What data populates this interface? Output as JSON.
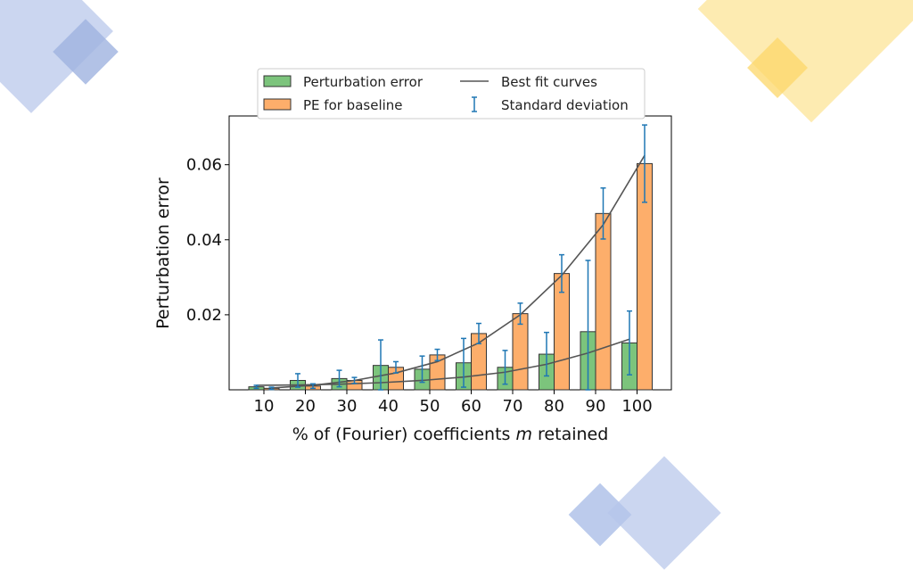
{
  "colors": {
    "green_bar": "#7cc47c",
    "orange_bar": "#fdae6b",
    "bar_edge": "#333333",
    "error_bar": "#1f77b4",
    "fit_curve": "#555555",
    "deco_blue": "#c5d2ee",
    "deco_blue_dark": "#9fb3e0",
    "deco_yellow": "#fde9a8",
    "deco_yellow_dark": "#fcd76a"
  },
  "chart_data": {
    "type": "bar",
    "categories": [
      "10",
      "20",
      "30",
      "40",
      "50",
      "60",
      "70",
      "80",
      "90",
      "100"
    ],
    "series": [
      {
        "name": "Perturbation error",
        "values": [
          0.0008,
          0.0025,
          0.003,
          0.0065,
          0.0055,
          0.0072,
          0.006,
          0.0095,
          0.0155,
          0.0125
        ],
        "std": [
          0.0004,
          0.0018,
          0.0022,
          0.0068,
          0.0035,
          0.0065,
          0.0045,
          0.0058,
          0.019,
          0.0085
        ]
      },
      {
        "name": "PE for baseline",
        "values": [
          0.0004,
          0.001,
          0.0025,
          0.006,
          0.0093,
          0.015,
          0.0203,
          0.031,
          0.047,
          0.0603
        ],
        "std": [
          0.0003,
          0.0006,
          0.0008,
          0.0015,
          0.0015,
          0.0027,
          0.0028,
          0.005,
          0.0068,
          0.0103
        ]
      }
    ],
    "fit_curves": {
      "name": "Best fit curves",
      "perturbation_error": [
        0.0012,
        0.0013,
        0.0015,
        0.0019,
        0.0025,
        0.0034,
        0.0047,
        0.0068,
        0.0098,
        0.0135
      ],
      "baseline": [
        0.0005,
        0.0012,
        0.0025,
        0.0045,
        0.0075,
        0.0125,
        0.02,
        0.0305,
        0.044,
        0.0625
      ]
    },
    "error_bar_legend": "Standard deviation",
    "xlabel_prefix": "% of (Fourier) coefficients ",
    "xlabel_var": "m",
    "xlabel_suffix": " retained",
    "ylabel": "Perturbation error",
    "y_ticks": [
      "0.02",
      "0.04",
      "0.06"
    ],
    "ylim": [
      0,
      0.073
    ],
    "legend_position": "top-center-outside",
    "grid": false
  }
}
